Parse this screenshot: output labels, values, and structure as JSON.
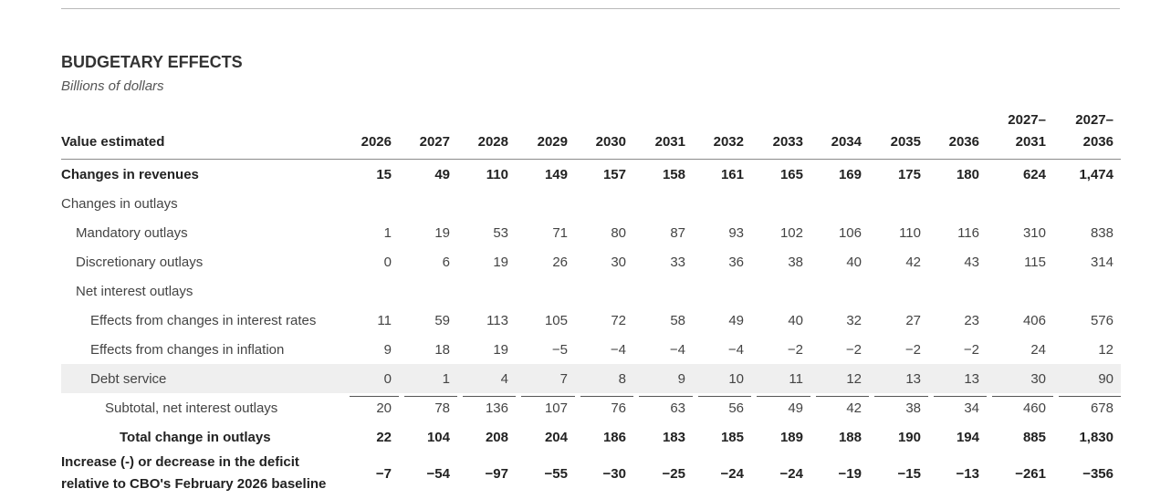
{
  "title": "BUDGETARY EFFECTS",
  "subtitle": "Billions of dollars",
  "header": {
    "label": "Value estimated",
    "years": [
      "2026",
      "2027",
      "2028",
      "2029",
      "2030",
      "2031",
      "2032",
      "2033",
      "2034",
      "2035",
      "2036"
    ],
    "range1": {
      "top": "2027–",
      "bottom": "2031"
    },
    "range2": {
      "top": "2027–",
      "bottom": "2036"
    }
  },
  "rows": [
    {
      "label": "Changes in revenues",
      "values": [
        "15",
        "49",
        "110",
        "149",
        "157",
        "158",
        "161",
        "165",
        "169",
        "175",
        "180",
        "624",
        "1,474"
      ]
    },
    {
      "label": "Changes in outlays",
      "values": []
    },
    {
      "label": "Mandatory outlays",
      "values": [
        "1",
        "19",
        "53",
        "71",
        "80",
        "87",
        "93",
        "102",
        "106",
        "110",
        "116",
        "310",
        "838"
      ]
    },
    {
      "label": "Discretionary outlays",
      "values": [
        "0",
        "6",
        "19",
        "26",
        "30",
        "33",
        "36",
        "38",
        "40",
        "42",
        "43",
        "115",
        "314"
      ]
    },
    {
      "label": "Net interest outlays",
      "values": []
    },
    {
      "label": "Effects from changes in interest rates",
      "values": [
        "11",
        "59",
        "113",
        "105",
        "72",
        "58",
        "49",
        "40",
        "32",
        "27",
        "23",
        "406",
        "576"
      ]
    },
    {
      "label": "Effects from changes in inflation",
      "values": [
        "9",
        "18",
        "19",
        "−5",
        "−4",
        "−4",
        "−4",
        "−2",
        "−2",
        "−2",
        "−2",
        "24",
        "12"
      ]
    },
    {
      "label": "Debt service",
      "values": [
        "0",
        "1",
        "4",
        "7",
        "8",
        "9",
        "10",
        "11",
        "12",
        "13",
        "13",
        "30",
        "90"
      ]
    },
    {
      "label": "Subtotal, net interest outlays",
      "values": [
        "20",
        "78",
        "136",
        "107",
        "76",
        "63",
        "56",
        "49",
        "42",
        "38",
        "34",
        "460",
        "678"
      ]
    },
    {
      "label": "Total change in outlays",
      "values": [
        "22",
        "104",
        "208",
        "204",
        "186",
        "183",
        "185",
        "189",
        "188",
        "190",
        "194",
        "885",
        "1,830"
      ]
    },
    {
      "label": "Increase (-) or decrease in the deficit relative to CBO's February 2026 baseline",
      "values": [
        "−7",
        "−54",
        "−97",
        "−55",
        "−30",
        "−25",
        "−24",
        "−24",
        "−19",
        "−15",
        "−13",
        "−261",
        "−356"
      ]
    }
  ]
}
